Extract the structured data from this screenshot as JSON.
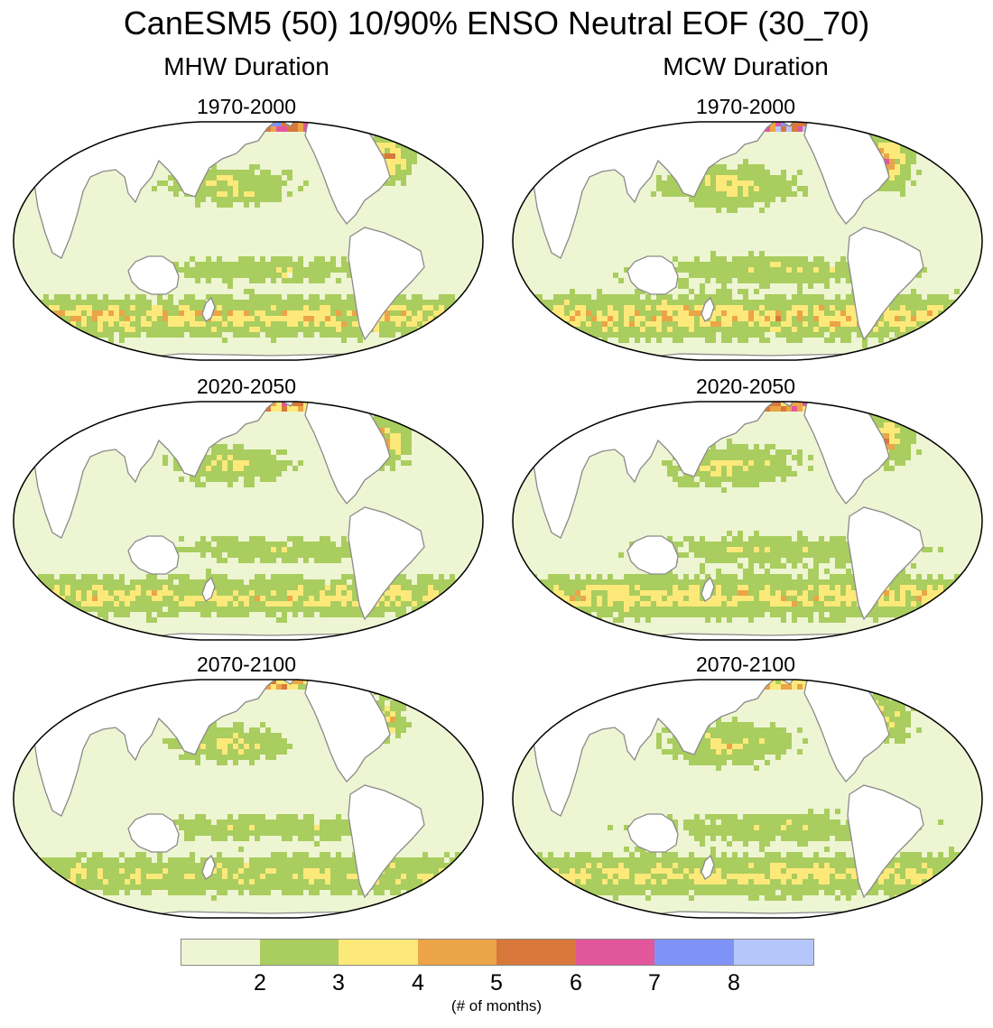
{
  "title": "CanESM5 (50) 10/90% ENSO Neutral EOF (30_70)",
  "columns": [
    {
      "title": "MHW Duration"
    },
    {
      "title": "MCW Duration"
    }
  ],
  "panels": [
    {
      "column": "MHW Duration",
      "period": "1970-2000"
    },
    {
      "column": "MCW Duration",
      "period": "1970-2000"
    },
    {
      "column": "MHW Duration",
      "period": "2020-2050"
    },
    {
      "column": "MCW Duration",
      "period": "2020-2050"
    },
    {
      "column": "MHW Duration",
      "period": "2070-2100"
    },
    {
      "column": "MCW Duration",
      "period": "2070-2100"
    }
  ],
  "colorbar": {
    "unit_label": "(# of months)",
    "tick_labels": [
      "2",
      "3",
      "4",
      "5",
      "6",
      "7",
      "8"
    ],
    "colors": [
      "#eef5d3",
      "#a9cd5e",
      "#fde97a",
      "#eba447",
      "#d8783b",
      "#e2579c",
      "#7f93f7",
      "#b5c7fa"
    ]
  },
  "map_style": {
    "land_color": "#ffffff",
    "coast_color": "#8a8a8a",
    "border_color": "#000000"
  }
}
